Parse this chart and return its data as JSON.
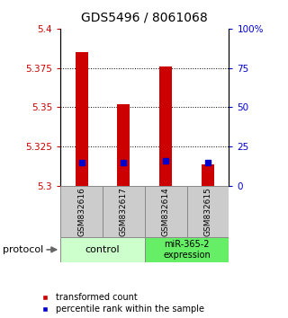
{
  "title": "GDS5496 / 8061068",
  "samples": [
    "GSM832616",
    "GSM832617",
    "GSM832614",
    "GSM832615"
  ],
  "bar_values": [
    5.385,
    5.352,
    5.376,
    5.314
  ],
  "percentile_values": [
    5.315,
    5.315,
    5.316,
    5.315
  ],
  "baseline": 5.3,
  "ylim_left": [
    5.3,
    5.4
  ],
  "yticks_left": [
    5.3,
    5.325,
    5.35,
    5.375,
    5.4
  ],
  "yticks_left_labels": [
    "5.3",
    "5.325",
    "5.35",
    "5.375",
    "5.4"
  ],
  "yticks_right": [
    0,
    25,
    50,
    75,
    100
  ],
  "yticks_right_labels": [
    "0",
    "25",
    "50",
    "75",
    "100%"
  ],
  "bar_color": "#cc0000",
  "percentile_color": "#0000cc",
  "sample_box_color": "#cccccc",
  "control_color": "#ccffcc",
  "mir_color": "#66ee66",
  "bar_width": 0.3,
  "percentile_marker_size": 5,
  "title_fontsize": 10,
  "tick_fontsize": 7.5,
  "sample_fontsize": 6.5,
  "group_fontsize": 8,
  "legend_fontsize": 7,
  "protocol_fontsize": 8
}
